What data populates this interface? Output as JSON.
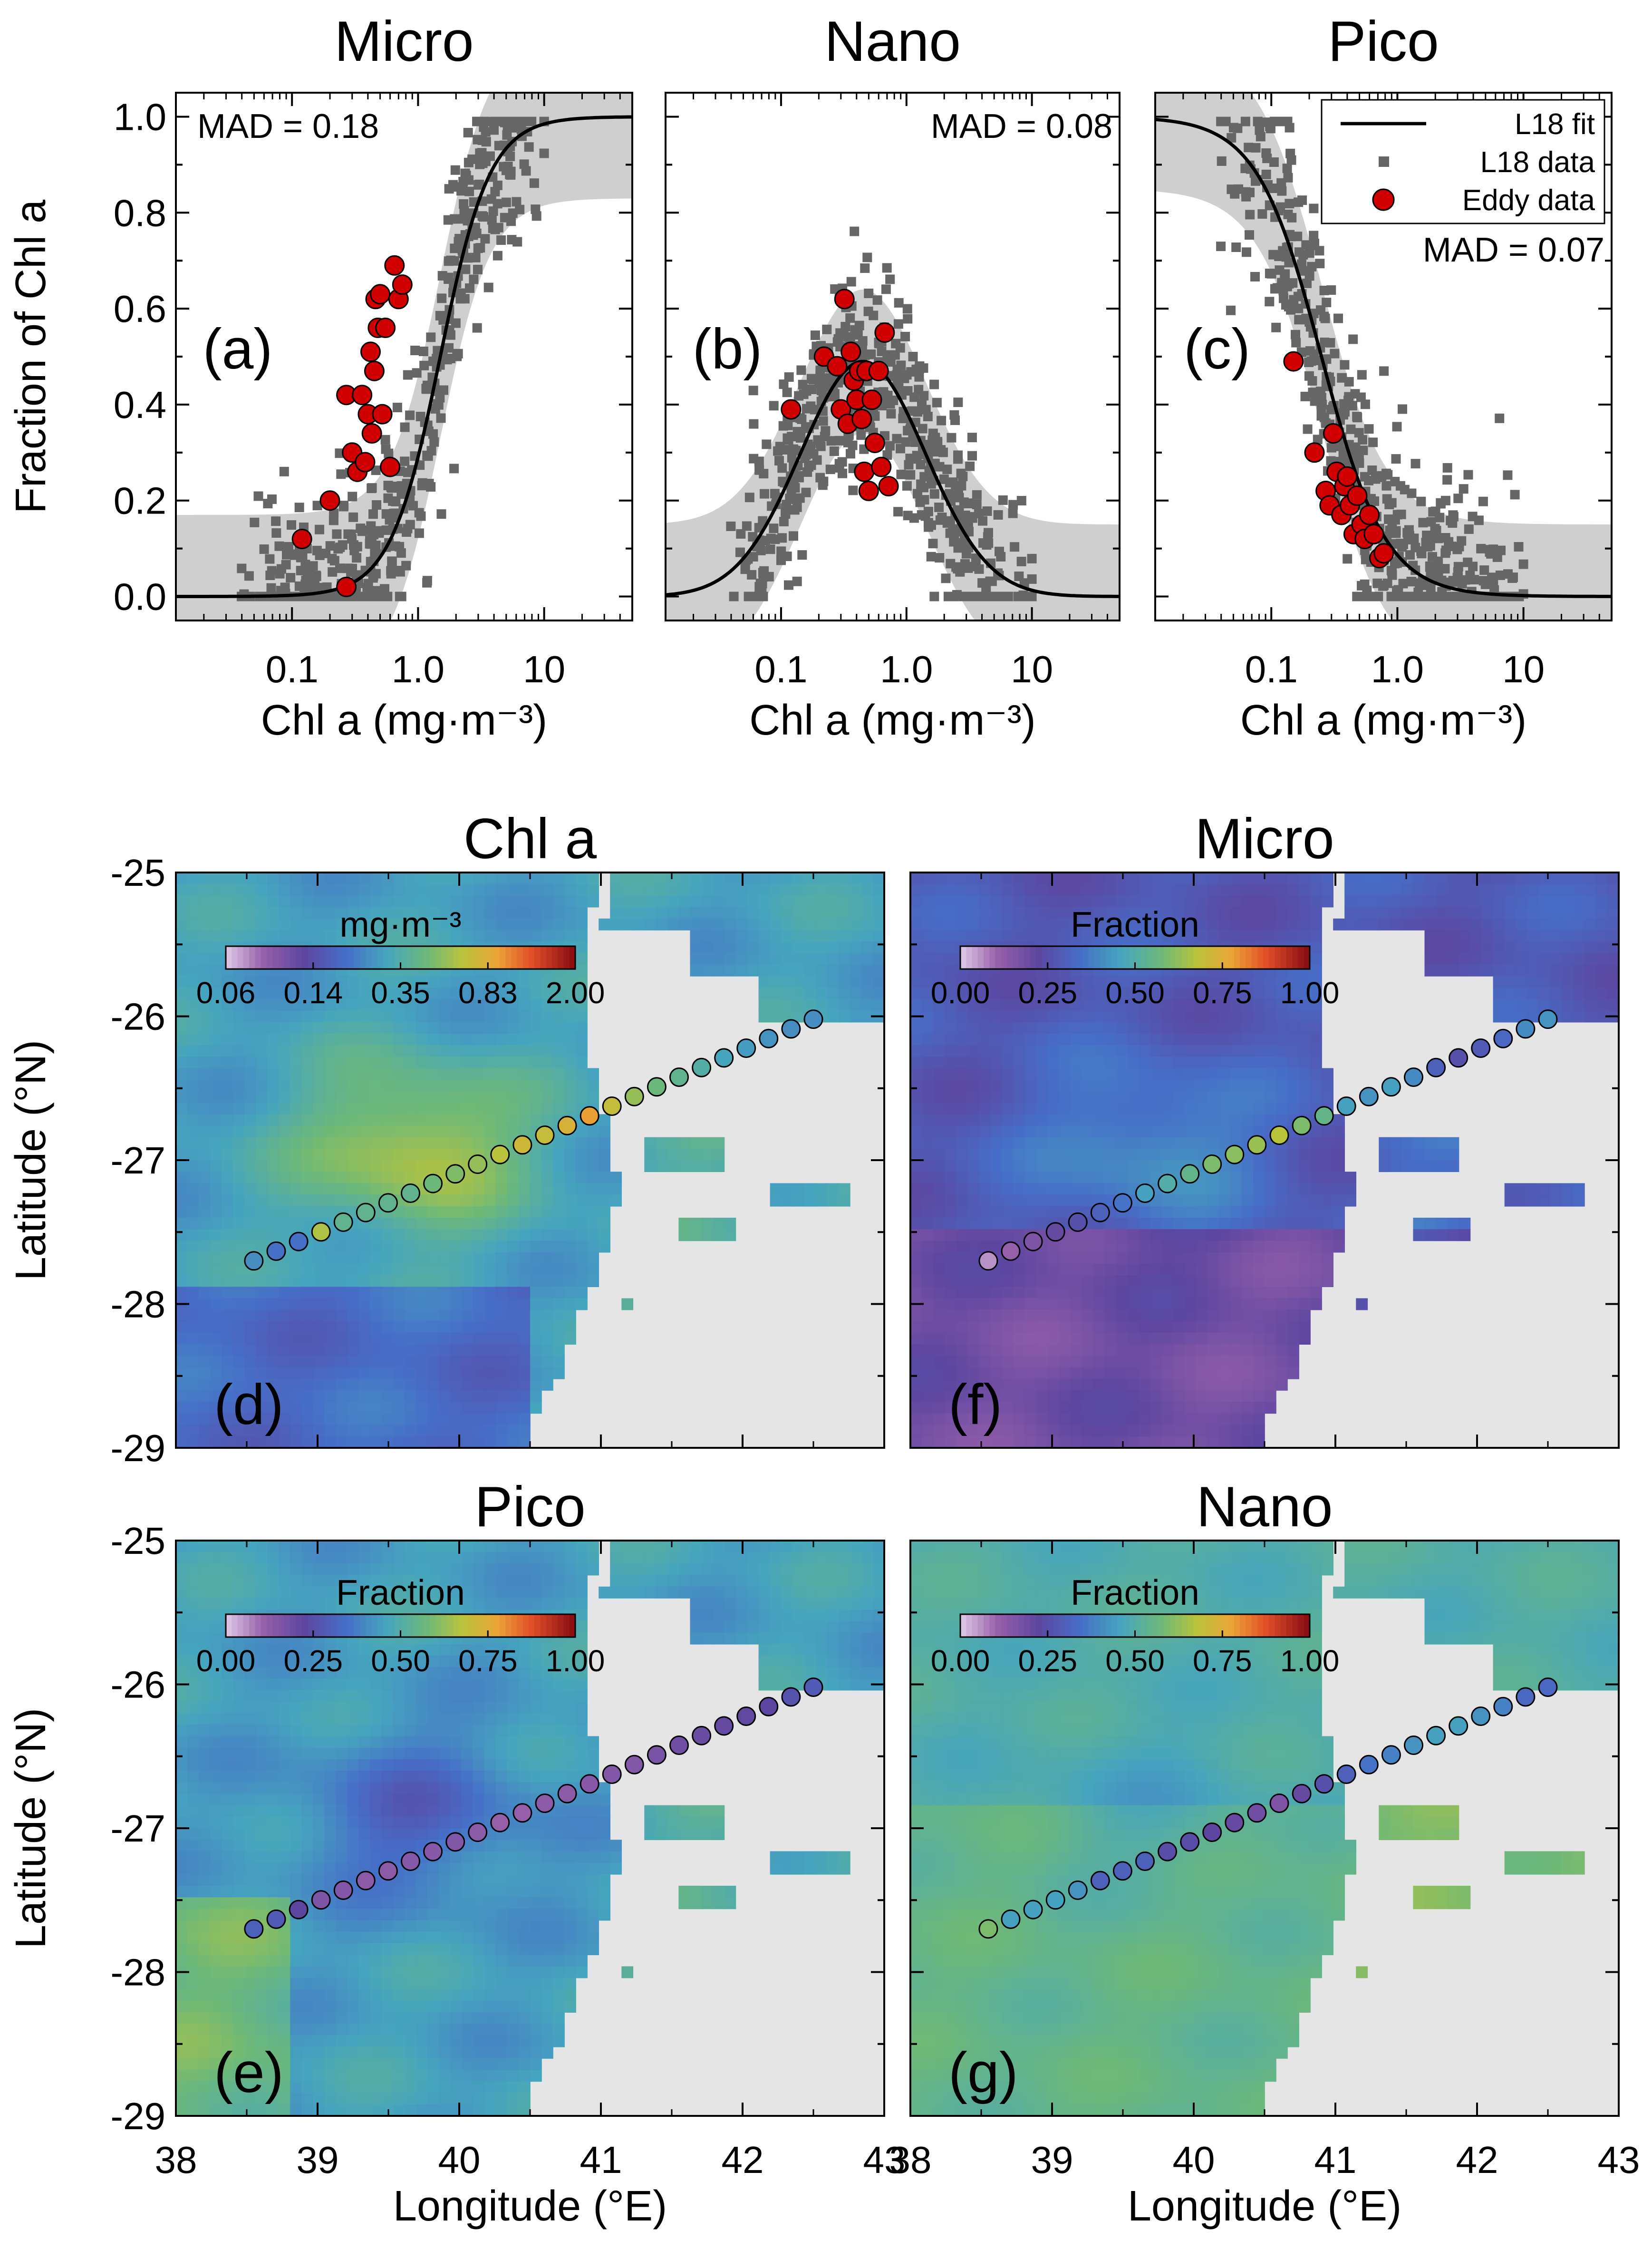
{
  "chart_data": [
    {
      "id": "a",
      "type": "scatter",
      "title": "Micro",
      "panel_label": "(a)",
      "xlabel": "Chl a (mg·m⁻³)",
      "ylabel": "Fraction of Chl a",
      "xscale": "log",
      "xlim": [
        0.012,
        50
      ],
      "ylim": [
        -0.05,
        1.05
      ],
      "xticks": [
        "0.1",
        "1.0",
        "10"
      ],
      "yticks": [
        "0.0",
        "0.2",
        "0.4",
        "0.6",
        "0.8",
        "1.0"
      ],
      "mad": "MAD = 0.18",
      "mad_position": "top-left",
      "fit": {
        "form": "rising-sigmoid",
        "c50": 1.5,
        "slope": 2.2
      },
      "band_halfwidth": 0.17,
      "l18_points": 520,
      "eddy_points": [
        {
          "x": 0.12,
          "y": 0.12
        },
        {
          "x": 0.2,
          "y": 0.2
        },
        {
          "x": 0.27,
          "y": 0.02
        },
        {
          "x": 0.27,
          "y": 0.42
        },
        {
          "x": 0.3,
          "y": 0.3
        },
        {
          "x": 0.33,
          "y": 0.26
        },
        {
          "x": 0.36,
          "y": 0.42
        },
        {
          "x": 0.38,
          "y": 0.28
        },
        {
          "x": 0.4,
          "y": 0.38
        },
        {
          "x": 0.42,
          "y": 0.51
        },
        {
          "x": 0.43,
          "y": 0.34
        },
        {
          "x": 0.45,
          "y": 0.47
        },
        {
          "x": 0.46,
          "y": 0.62
        },
        {
          "x": 0.48,
          "y": 0.56
        },
        {
          "x": 0.5,
          "y": 0.63
        },
        {
          "x": 0.52,
          "y": 0.38
        },
        {
          "x": 0.55,
          "y": 0.56
        },
        {
          "x": 0.6,
          "y": 0.27
        },
        {
          "x": 0.65,
          "y": 0.69
        },
        {
          "x": 0.7,
          "y": 0.62
        },
        {
          "x": 0.75,
          "y": 0.65
        }
      ]
    },
    {
      "id": "b",
      "type": "scatter",
      "title": "Nano",
      "panel_label": "(b)",
      "xlabel": "Chl a (mg·m⁻³)",
      "xscale": "log",
      "xlim": [
        0.012,
        50
      ],
      "ylim": [
        -0.05,
        1.05
      ],
      "xticks": [
        "0.1",
        "1.0",
        "10"
      ],
      "mad": "MAD = 0.08",
      "mad_position": "top-right",
      "fit": {
        "form": "hump",
        "peak_x": 0.45,
        "peak_y": 0.49
      },
      "band_halfwidth": 0.15,
      "l18_points": 520,
      "eddy_points": [
        {
          "x": 0.12,
          "y": 0.39
        },
        {
          "x": 0.22,
          "y": 0.5
        },
        {
          "x": 0.28,
          "y": 0.48
        },
        {
          "x": 0.3,
          "y": 0.39
        },
        {
          "x": 0.32,
          "y": 0.62
        },
        {
          "x": 0.34,
          "y": 0.36
        },
        {
          "x": 0.36,
          "y": 0.51
        },
        {
          "x": 0.38,
          "y": 0.45
        },
        {
          "x": 0.4,
          "y": 0.41
        },
        {
          "x": 0.42,
          "y": 0.47
        },
        {
          "x": 0.44,
          "y": 0.37
        },
        {
          "x": 0.46,
          "y": 0.26
        },
        {
          "x": 0.48,
          "y": 0.47
        },
        {
          "x": 0.5,
          "y": 0.22
        },
        {
          "x": 0.53,
          "y": 0.41
        },
        {
          "x": 0.56,
          "y": 0.32
        },
        {
          "x": 0.6,
          "y": 0.47
        },
        {
          "x": 0.63,
          "y": 0.27
        },
        {
          "x": 0.67,
          "y": 0.55
        },
        {
          "x": 0.72,
          "y": 0.23
        }
      ]
    },
    {
      "id": "c",
      "type": "scatter",
      "title": "Pico",
      "panel_label": "(c)",
      "xlabel": "Chl a (mg·m⁻³)",
      "xscale": "log",
      "xlim": [
        0.012,
        50
      ],
      "ylim": [
        -0.05,
        1.05
      ],
      "xticks": [
        "0.1",
        "1.0",
        "10"
      ],
      "mad": "MAD = 0.07",
      "mad_position": "right",
      "fit": {
        "form": "falling-sigmoid",
        "c50": 0.25,
        "slope": 1.7
      },
      "band_halfwidth": 0.15,
      "l18_points": 520,
      "legend": [
        {
          "label": "L18 fit",
          "marker": "line"
        },
        {
          "label": "L18 data",
          "marker": "square"
        },
        {
          "label": "Eddy data",
          "marker": "circle"
        }
      ],
      "eddy_points": [
        {
          "x": 0.15,
          "y": 0.49
        },
        {
          "x": 0.22,
          "y": 0.3
        },
        {
          "x": 0.27,
          "y": 0.22
        },
        {
          "x": 0.29,
          "y": 0.19
        },
        {
          "x": 0.31,
          "y": 0.34
        },
        {
          "x": 0.33,
          "y": 0.26
        },
        {
          "x": 0.36,
          "y": 0.17
        },
        {
          "x": 0.38,
          "y": 0.23
        },
        {
          "x": 0.4,
          "y": 0.25
        },
        {
          "x": 0.42,
          "y": 0.19
        },
        {
          "x": 0.45,
          "y": 0.13
        },
        {
          "x": 0.48,
          "y": 0.21
        },
        {
          "x": 0.52,
          "y": 0.15
        },
        {
          "x": 0.55,
          "y": 0.12
        },
        {
          "x": 0.6,
          "y": 0.17
        },
        {
          "x": 0.65,
          "y": 0.13
        },
        {
          "x": 0.72,
          "y": 0.08
        },
        {
          "x": 0.78,
          "y": 0.09
        }
      ]
    },
    {
      "id": "d",
      "type": "heatmap",
      "title": "Chl a",
      "panel_label": "(d)",
      "colorbar_label": "mg·m⁻³",
      "colorbar_ticks": [
        "0.06",
        "0.14",
        "0.35",
        "0.83",
        "2.00"
      ],
      "field": "chl",
      "xlim": [
        38,
        43
      ],
      "ylim": [
        -29,
        -25
      ],
      "yticks": [
        "-25",
        "-26",
        "-27",
        "-28",
        "-29"
      ],
      "ylabel": "Latitude (°N)"
    },
    {
      "id": "f",
      "type": "heatmap",
      "title": "Micro",
      "panel_label": "(f)",
      "colorbar_label": "Fraction",
      "colorbar_ticks": [
        "0.00",
        "0.25",
        "0.50",
        "0.75",
        "1.00"
      ],
      "field": "micro",
      "xlim": [
        38,
        43
      ],
      "ylim": [
        -29,
        -25
      ]
    },
    {
      "id": "e",
      "type": "heatmap",
      "title": "Pico",
      "panel_label": "(e)",
      "colorbar_label": "Fraction",
      "colorbar_ticks": [
        "0.00",
        "0.25",
        "0.50",
        "0.75",
        "1.00"
      ],
      "field": "pico",
      "xlim": [
        38,
        43
      ],
      "ylim": [
        -29,
        -25
      ],
      "xticks": [
        "38",
        "39",
        "40",
        "41",
        "42",
        "43"
      ],
      "yticks": [
        "-25",
        "-26",
        "-27",
        "-28",
        "-29"
      ],
      "xlabel": "Longitude (°E)",
      "ylabel": "Latitude (°N)"
    },
    {
      "id": "g",
      "type": "heatmap",
      "title": "Nano",
      "panel_label": "(g)",
      "colorbar_label": "Fraction",
      "colorbar_ticks": [
        "0.00",
        "0.25",
        "0.50",
        "0.75",
        "1.00"
      ],
      "field": "nano",
      "xlim": [
        38,
        43
      ],
      "ylim": [
        -29,
        -25
      ],
      "xticks": [
        "38",
        "39",
        "40",
        "41",
        "42",
        "43"
      ],
      "xlabel": "Longitude (°E)"
    }
  ],
  "transect": {
    "start": [
      38.55,
      -27.7
    ],
    "end": [
      42.5,
      -26.02
    ],
    "n_stations": 26,
    "chl": [
      0.25,
      0.2,
      0.2,
      0.62,
      0.4,
      0.4,
      0.4,
      0.4,
      0.45,
      0.5,
      0.55,
      0.65,
      0.75,
      0.7,
      0.8,
      0.95,
      0.7,
      0.55,
      0.45,
      0.4,
      0.35,
      0.3,
      0.28,
      0.26,
      0.25,
      0.25
    ],
    "micro": [
      0.05,
      0.1,
      0.15,
      0.2,
      0.25,
      0.3,
      0.35,
      0.45,
      0.5,
      0.55,
      0.6,
      0.62,
      0.64,
      0.68,
      0.6,
      0.55,
      0.45,
      0.42,
      0.45,
      0.4,
      0.3,
      0.25,
      0.28,
      0.32,
      0.4,
      0.42
    ],
    "pico": [
      0.3,
      0.28,
      0.22,
      0.15,
      0.14,
      0.12,
      0.12,
      0.13,
      0.13,
      0.14,
      0.12,
      0.1,
      0.1,
      0.12,
      0.12,
      0.13,
      0.14,
      0.14,
      0.16,
      0.18,
      0.19,
      0.2,
      0.21,
      0.22,
      0.26,
      0.28
    ],
    "nano": [
      0.6,
      0.45,
      0.45,
      0.45,
      0.42,
      0.3,
      0.3,
      0.3,
      0.24,
      0.24,
      0.22,
      0.2,
      0.18,
      0.15,
      0.2,
      0.25,
      0.3,
      0.35,
      0.38,
      0.42,
      0.45,
      0.45,
      0.42,
      0.38,
      0.32,
      0.32
    ]
  },
  "colors": {
    "l18_data": "#666666",
    "eddy_data": "#d10000",
    "mad_text": "#d10000",
    "band": "#cfcfcf",
    "land_nodata": "#e5e5e5"
  }
}
